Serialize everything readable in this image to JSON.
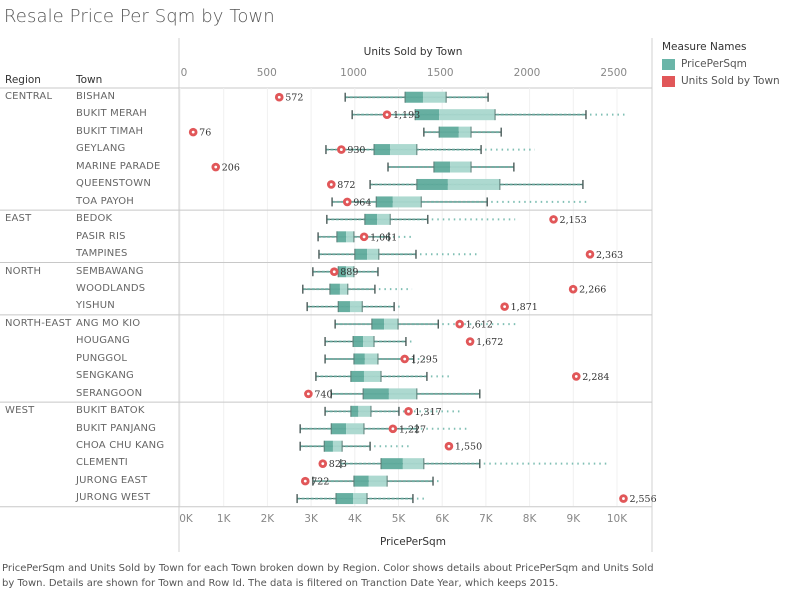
{
  "title": "Resale Price Per Sqm by Town",
  "headers": {
    "region": "Region",
    "town": "Town"
  },
  "legend": {
    "title": "Measure Names",
    "items": [
      {
        "label": "PricePerSqm",
        "color": "#6ab5a8"
      },
      {
        "label": "Units Sold by Town",
        "color": "#e15759"
      }
    ]
  },
  "caption": "PricePerSqm and Units Sold by Town for each Town broken down by Region.  Color shows details about PricePerSqm and Units Sold by Town.  Details are shown for Town and Row Id. The data is filtered on Tranction Date Year, which keeps 2015.",
  "chart_data": {
    "type": "boxplot+scatter",
    "title": "Resale Price Per Sqm by Town",
    "top_axis": {
      "label": "Units Sold by Town",
      "range": [
        0,
        2650
      ],
      "ticks": [
        0,
        500,
        1000,
        1500,
        2000,
        2500
      ],
      "tick_labels": [
        "0",
        "500",
        "1000",
        "1500",
        "2000",
        "2500"
      ]
    },
    "bottom_axis": {
      "label": "PricePerSqm",
      "range": [
        0,
        10700
      ],
      "ticks": [
        0,
        1000,
        2000,
        3000,
        4000,
        5000,
        6000,
        7000,
        8000,
        9000,
        10000
      ],
      "tick_labels": [
        "0K",
        "1K",
        "2K",
        "3K",
        "4K",
        "5K",
        "6K",
        "7K",
        "8K",
        "9K",
        "10K"
      ]
    },
    "grid": true,
    "legend_position": "right",
    "series": [
      {
        "name": "PricePerSqm",
        "kind": "box",
        "color": "#6ab5a8"
      },
      {
        "name": "Units Sold by Town",
        "kind": "point",
        "color": "#e15759"
      }
    ],
    "regions": [
      {
        "name": "CENTRAL",
        "towns": [
          {
            "town": "BISHAN",
            "price": {
              "min": 3780,
              "q1": 5150,
              "median": 5560,
              "q3": 6090,
              "max": 7050,
              "outliers_to": 7050
            },
            "units": 572,
            "units_label": "572"
          },
          {
            "town": "BUKIT MERAH",
            "price": {
              "min": 3940,
              "q1": 5380,
              "median": 5930,
              "q3": 7210,
              "max": 9290,
              "outliers_to": 10200
            },
            "units": 1193,
            "units_label": "1,193"
          },
          {
            "town": "BUKIT TIMAH",
            "price": {
              "min": 5580,
              "q1": 5930,
              "median": 6380,
              "q3": 6660,
              "max": 7350,
              "outliers_to": 7350
            },
            "units": 76,
            "units_label": "76"
          },
          {
            "town": "GEYLANG",
            "price": {
              "min": 3340,
              "q1": 4440,
              "median": 4810,
              "q3": 5420,
              "max": 6890,
              "outliers_to": 8120
            },
            "units": 930,
            "units_label": "930"
          },
          {
            "town": "MARINE PARADE",
            "price": {
              "min": 4760,
              "q1": 5810,
              "median": 6180,
              "q3": 6660,
              "max": 7640,
              "outliers_to": 7640
            },
            "units": 206,
            "units_label": "206"
          },
          {
            "town": "QUEENSTOWN",
            "price": {
              "min": 4350,
              "q1": 5420,
              "median": 6130,
              "q3": 7320,
              "max": 9220,
              "outliers_to": 9220
            },
            "units": 872,
            "units_label": "872"
          },
          {
            "town": "TOA PAYOH",
            "price": {
              "min": 3480,
              "q1": 4490,
              "median": 4870,
              "q3": 5520,
              "max": 7030,
              "outliers_to": 9310
            },
            "units": 964,
            "units_label": "964"
          }
        ]
      },
      {
        "name": "EAST",
        "towns": [
          {
            "town": "BEDOK",
            "price": {
              "min": 3360,
              "q1": 4230,
              "median": 4510,
              "q3": 4810,
              "max": 5670,
              "outliers_to": 7670
            },
            "units": 2153,
            "units_label": "2,153"
          },
          {
            "town": "PASIR RIS",
            "price": {
              "min": 3160,
              "q1": 3590,
              "median": 3800,
              "q3": 3980,
              "max": 4780,
              "outliers_to": 5290
            },
            "units": 1061,
            "units_label": "1,061"
          },
          {
            "town": "TAMPINES",
            "price": {
              "min": 3180,
              "q1": 4000,
              "median": 4280,
              "q3": 4550,
              "max": 5400,
              "outliers_to": 6870
            },
            "units": 2363,
            "units_label": "2,363"
          }
        ]
      },
      {
        "name": "NORTH",
        "towns": [
          {
            "town": "SEMBAWANG",
            "price": {
              "min": 3040,
              "q1": 3620,
              "median": 3800,
              "q3": 3980,
              "max": 4530,
              "outliers_to": 4530
            },
            "units": 889,
            "units_label": "889"
          },
          {
            "town": "WOODLANDS",
            "price": {
              "min": 2810,
              "q1": 3430,
              "median": 3660,
              "q3": 3840,
              "max": 4460,
              "outliers_to": 5310
            },
            "units": 2266,
            "units_label": "2,266"
          },
          {
            "town": "YISHUN",
            "price": {
              "min": 2910,
              "q1": 3620,
              "median": 3890,
              "q3": 4170,
              "max": 4900,
              "outliers_to": 5100
            },
            "units": 1871,
            "units_label": "1,871"
          }
        ]
      },
      {
        "name": "NORTH-EAST",
        "towns": [
          {
            "town": "ANG MO KIO",
            "price": {
              "min": 3550,
              "q1": 4390,
              "median": 4670,
              "q3": 4990,
              "max": 5910,
              "outliers_to": 7690
            },
            "units": 1612,
            "units_label": "1,612"
          },
          {
            "town": "HOUGANG",
            "price": {
              "min": 3320,
              "q1": 3960,
              "median": 4190,
              "q3": 4440,
              "max": 5170,
              "outliers_to": 5380
            },
            "units": 1672,
            "units_label": "1,672"
          },
          {
            "town": "PUNGGOL",
            "price": {
              "min": 3320,
              "q1": 3980,
              "median": 4230,
              "q3": 4530,
              "max": 5350,
              "outliers_to": 5600
            },
            "units": 1295,
            "units_label": "1,295"
          },
          {
            "town": "SENGKANG",
            "price": {
              "min": 3110,
              "q1": 3910,
              "median": 4210,
              "q3": 4600,
              "max": 5650,
              "outliers_to": 6200
            },
            "units": 2284,
            "units_label": "2,284"
          },
          {
            "town": "SERANGOON",
            "price": {
              "min": 3460,
              "q1": 4190,
              "median": 4780,
              "q3": 5420,
              "max": 6860,
              "outliers_to": 6860
            },
            "units": 740,
            "units_label": "740"
          }
        ]
      },
      {
        "name": "WEST",
        "towns": [
          {
            "town": "BUKIT BATOK",
            "price": {
              "min": 3320,
              "q1": 3910,
              "median": 4080,
              "q3": 4370,
              "max": 5010,
              "outliers_to": 6430
            },
            "units": 1317,
            "units_label": "1,317"
          },
          {
            "town": "BUKIT PANJANG",
            "price": {
              "min": 2750,
              "q1": 3460,
              "median": 3800,
              "q3": 4210,
              "max": 5420,
              "outliers_to": 6610
            },
            "units": 1227,
            "units_label": "1,227"
          },
          {
            "town": "CHOA CHU KANG",
            "price": {
              "min": 2750,
              "q1": 3300,
              "median": 3500,
              "q3": 3710,
              "max": 4350,
              "outliers_to": 5240
            },
            "units": 1550,
            "units_label": "1,550"
          },
          {
            "town": "CLEMENTI",
            "price": {
              "min": 3680,
              "q1": 4600,
              "median": 5100,
              "q3": 5580,
              "max": 6860,
              "outliers_to": 9770
            },
            "units": 823,
            "units_label": "823"
          },
          {
            "town": "JURONG EAST",
            "price": {
              "min": 3040,
              "q1": 3980,
              "median": 4320,
              "q3": 4740,
              "max": 5790,
              "outliers_to": 6000
            },
            "units": 722,
            "units_label": "722"
          },
          {
            "town": "JURONG WEST",
            "price": {
              "min": 2680,
              "q1": 3570,
              "median": 3960,
              "q3": 4280,
              "max": 5330,
              "outliers_to": 5610
            },
            "units": 2556,
            "units_label": "2,556"
          }
        ]
      }
    ]
  }
}
